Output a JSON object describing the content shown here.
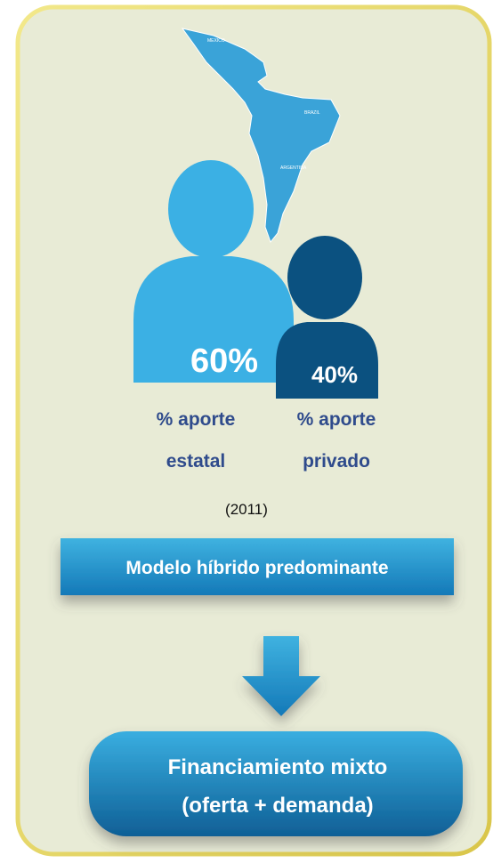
{
  "map": {
    "labels": [
      "MEXICO",
      "BRAZIL",
      "ARGENTINA"
    ]
  },
  "figures": [
    {
      "value_label": "60%",
      "label": [
        "% aporte",
        "estatal"
      ]
    },
    {
      "value_label": "40%",
      "label": [
        "% aporte",
        "privado"
      ]
    }
  ],
  "year": "(2011)",
  "model": "Modelo híbrido predominante",
  "result": [
    "Financiamiento mixto",
    "(oferta + demanda)"
  ]
}
